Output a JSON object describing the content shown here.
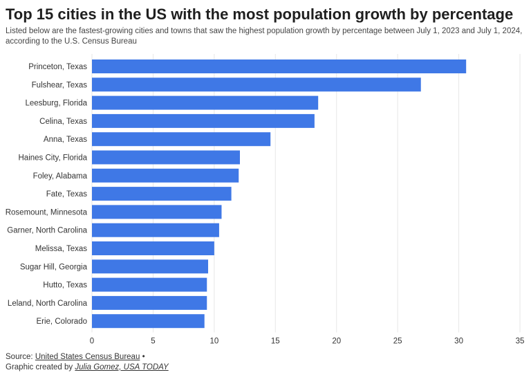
{
  "header": {
    "title": "Top 15 cities in the US with the most population growth by percentage",
    "subtitle": "Listed below are the fastest-growing cities and towns that saw the highest population growth by percentage between July 1, 2023 and July 1, 2024, according to the U.S. Census Bureau"
  },
  "footer": {
    "source_prefix": "Source:",
    "source_link": "United States Census Bureau",
    "source_suffix": "•",
    "credit_prefix": "Graphic created by",
    "credit_name": "Julia Gomez, USA TODAY"
  },
  "colors": {
    "bar": "#3f78e6",
    "grid": "#e6e6e6"
  },
  "chart_data": {
    "type": "bar",
    "orientation": "horizontal",
    "categories": [
      "Princeton, Texas",
      "Fulshear, Texas",
      "Leesburg, Florida",
      "Celina, Texas",
      "Anna, Texas",
      "Haines City, Florida",
      "Foley, Alabama",
      "Fate, Texas",
      "Rosemount, Minnesota",
      "Garner, North Carolina",
      "Melissa, Texas",
      "Sugar Hill, Georgia",
      "Hutto, Texas",
      "Leland, North Carolina",
      "Erie, Colorado"
    ],
    "values": [
      30.6,
      26.9,
      18.5,
      18.2,
      14.6,
      12.1,
      12.0,
      11.4,
      10.6,
      10.4,
      10.0,
      9.5,
      9.4,
      9.4,
      9.2
    ],
    "xlim": [
      0,
      35
    ],
    "xticks": [
      0,
      5,
      10,
      15,
      20,
      25,
      30,
      35
    ],
    "grid": true
  }
}
